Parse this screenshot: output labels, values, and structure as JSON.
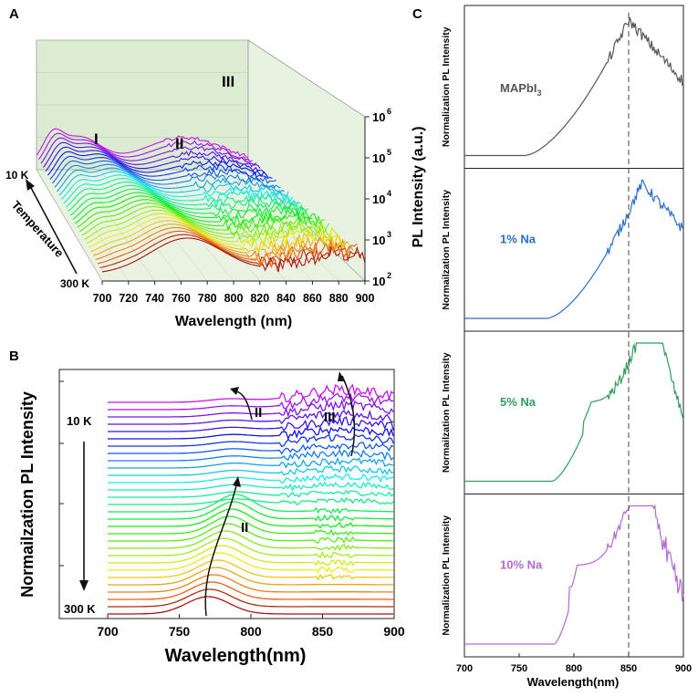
{
  "figure": {
    "panel_labels": [
      "A",
      "B",
      "C"
    ],
    "panel_a": {
      "xlabel": "Wavelength (nm)",
      "zlabel": "PL Intensity (a.u.)",
      "y_axis_label": "Temperature",
      "temp_top": "10 K",
      "temp_bottom": "300 K",
      "x_ticks": [
        "700",
        "720",
        "740",
        "760",
        "780",
        "800",
        "820",
        "840",
        "860",
        "880",
        "900"
      ],
      "z_ticks": [
        "10",
        "10",
        "10",
        "10",
        "10"
      ],
      "z_exps": [
        "2",
        "3",
        "4",
        "5",
        "6"
      ],
      "peak_labels": [
        "I",
        "II",
        "III"
      ]
    },
    "panel_b": {
      "xlabel": "Wavelength(nm)",
      "ylabel": "Normailzation PL Intensity",
      "temp_top": "10 K",
      "temp_bottom": "300 K",
      "x_ticks": [
        "700",
        "750",
        "800",
        "850",
        "900"
      ],
      "peak_labels": [
        "II",
        "III",
        "II"
      ]
    },
    "panel_c": {
      "xlabel": "Wavelength(nm)",
      "x_ticks": [
        "700",
        "750",
        "800",
        "850",
        "900"
      ],
      "dashed_line_nm": 850,
      "subplots": [
        {
          "label": "MAPbI",
          "sub": "3",
          "ylabel": "Normalization PL Intensity",
          "color": "#555555"
        },
        {
          "label": "1% Na",
          "sub": "",
          "ylabel": "Normailzation PL Intensity",
          "color": "#2a6fc9"
        },
        {
          "label": "5% Na",
          "sub": "",
          "ylabel": "Normailzation PL Intensity",
          "color": "#2f9e5e"
        },
        {
          "label": "10% Na",
          "sub": "",
          "ylabel": "Normalization PL Intensity",
          "color": "#b36ad4"
        }
      ]
    }
  },
  "chart_data": [
    {
      "type": "line",
      "title": "A",
      "xlabel": "Wavelength (nm)",
      "ylabel": "PL Intensity (a.u.)",
      "xlim": [
        700,
        900
      ],
      "ylim_log10": [
        2,
        6
      ],
      "series_count": 30,
      "temperature_range_K": [
        10,
        300
      ],
      "peaks_nm": {
        "I": 715,
        "II": 745,
        "III": 855
      }
    },
    {
      "type": "line",
      "title": "B",
      "xlabel": "Wavelength(nm)",
      "ylabel": "Normailzation PL Intensity",
      "xlim": [
        700,
        900
      ],
      "series_count": 30,
      "temperature_range_K": [
        10,
        300
      ],
      "peak_II_nm_300K": 770,
      "peak_II_nm_10K": 790,
      "peak_III_nm": 865
    },
    {
      "type": "line",
      "title": "C",
      "xlabel": "Wavelength(nm)",
      "xlim": [
        700,
        900
      ],
      "series": [
        {
          "name": "MAPbI3",
          "peaks_nm": [
            850
          ],
          "onset_nm": 755
        },
        {
          "name": "1% Na",
          "peaks_nm": [
            862
          ],
          "onset_nm": 775
        },
        {
          "name": "5% Na",
          "peaks_nm": [
            808,
            870
          ],
          "onset_nm": 780
        },
        {
          "name": "10% Na",
          "peaks_nm": [
            795,
            862
          ],
          "onset_nm": 782
        }
      ]
    }
  ]
}
